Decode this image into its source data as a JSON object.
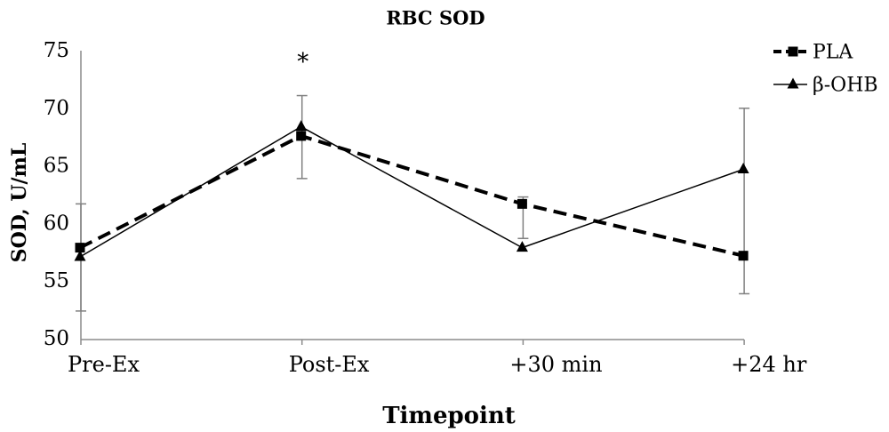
{
  "chart_data": {
    "type": "line",
    "title": "RBC SOD",
    "xlabel": "Timepoint",
    "ylabel": "SOD, U/mL",
    "categories": [
      "Pre-Ex",
      "Post-Ex",
      "+30 min",
      "+24 hr"
    ],
    "ylim": [
      50,
      75
    ],
    "yticks": [
      50,
      55,
      60,
      65,
      70,
      75
    ],
    "grid": false,
    "legend": "top-right",
    "series": [
      {
        "name": "PLA",
        "values": [
          57.9,
          67.6,
          61.7,
          57.2
        ],
        "color": "#000000",
        "dashed": true,
        "marker": "square"
      },
      {
        "name": "β-OHB",
        "values": [
          57.1,
          68.4,
          57.9,
          64.7
        ],
        "color": "#000000",
        "dashed": false,
        "marker": "triangle"
      }
    ],
    "error_bars": {
      "low": [
        52.4,
        63.9,
        58.7,
        53.9
      ],
      "high": [
        61.7,
        71.1,
        62.3,
        70.0
      ],
      "color": "#808080"
    },
    "annotations": [
      "",
      "*",
      "",
      ""
    ]
  }
}
